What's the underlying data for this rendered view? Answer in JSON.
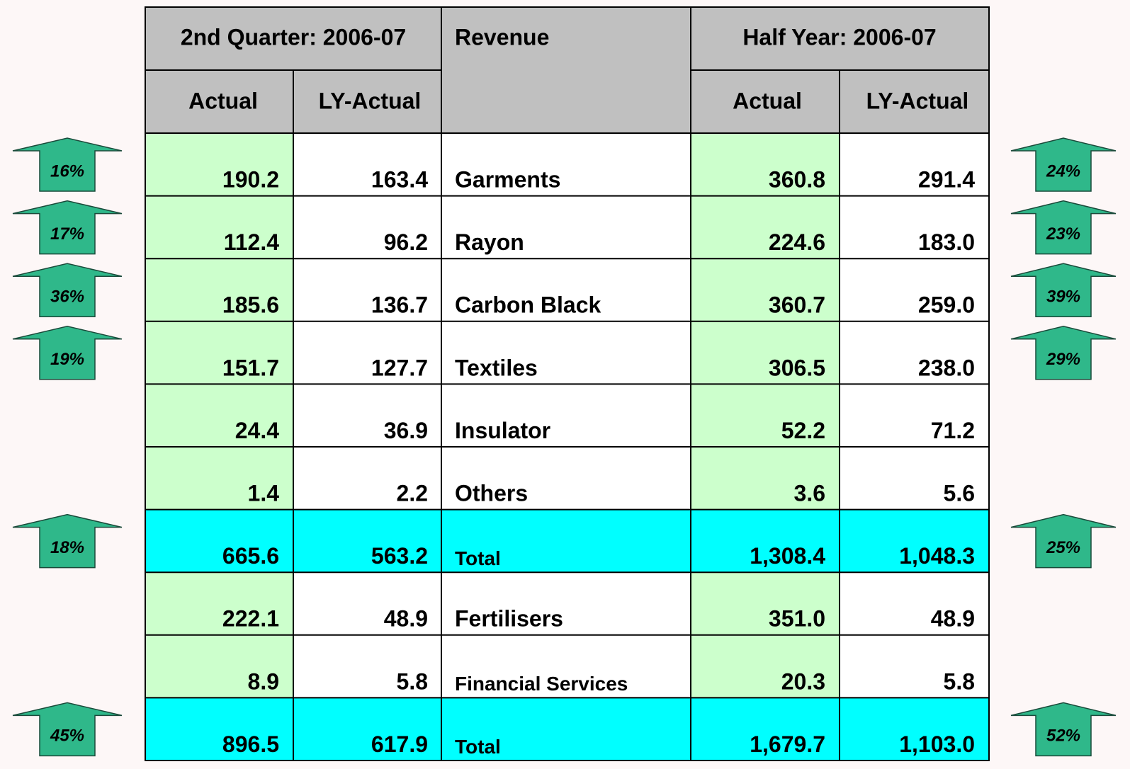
{
  "table": {
    "header": {
      "quarter": "2nd Quarter: 2006-07",
      "revenue": "Revenue",
      "half": "Half Year: 2006-07",
      "q_actual": "Actual",
      "q_ly": "LY-Actual",
      "h_actual": "Actual",
      "h_ly": "LY-Actual"
    },
    "rows": [
      {
        "label": "Garments",
        "q_actual": "190.2",
        "q_ly": "163.4",
        "h_actual": "360.8",
        "h_ly": "291.4",
        "q_growth": "16%",
        "h_growth": "24%"
      },
      {
        "label": "Rayon",
        "q_actual": "112.4",
        "q_ly": "96.2",
        "h_actual": "224.6",
        "h_ly": "183.0",
        "q_growth": "17%",
        "h_growth": "23%"
      },
      {
        "label": "Carbon Black",
        "q_actual": "185.6",
        "q_ly": "136.7",
        "h_actual": "360.7",
        "h_ly": "259.0",
        "q_growth": "36%",
        "h_growth": "39%"
      },
      {
        "label": "Textiles",
        "q_actual": "151.7",
        "q_ly": "127.7",
        "h_actual": "306.5",
        "h_ly": "238.0",
        "q_growth": "19%",
        "h_growth": "29%"
      },
      {
        "label": "Insulator",
        "q_actual": "24.4",
        "q_ly": "36.9",
        "h_actual": "52.2",
        "h_ly": "71.2"
      },
      {
        "label": "Others",
        "q_actual": "1.4",
        "q_ly": "2.2",
        "h_actual": "3.6",
        "h_ly": "5.6"
      },
      {
        "label": "Total",
        "q_actual": "665.6",
        "q_ly": "563.2",
        "h_actual": "1,308.4",
        "h_ly": "1,048.3",
        "q_growth": "18%",
        "h_growth": "25%",
        "total": true
      },
      {
        "label": "Fertilisers",
        "q_actual": "222.1",
        "q_ly": "48.9",
        "h_actual": "351.0",
        "h_ly": "48.9"
      },
      {
        "label": "Financial Services",
        "q_actual": "8.9",
        "q_ly": "5.8",
        "h_actual": "20.3",
        "h_ly": "5.8",
        "small": true
      },
      {
        "label": "Total",
        "q_actual": "896.5",
        "q_ly": "617.9",
        "h_actual": "1,679.7",
        "h_ly": "1,103.0",
        "q_growth": "45%",
        "h_growth": "52%",
        "total": true
      }
    ]
  }
}
